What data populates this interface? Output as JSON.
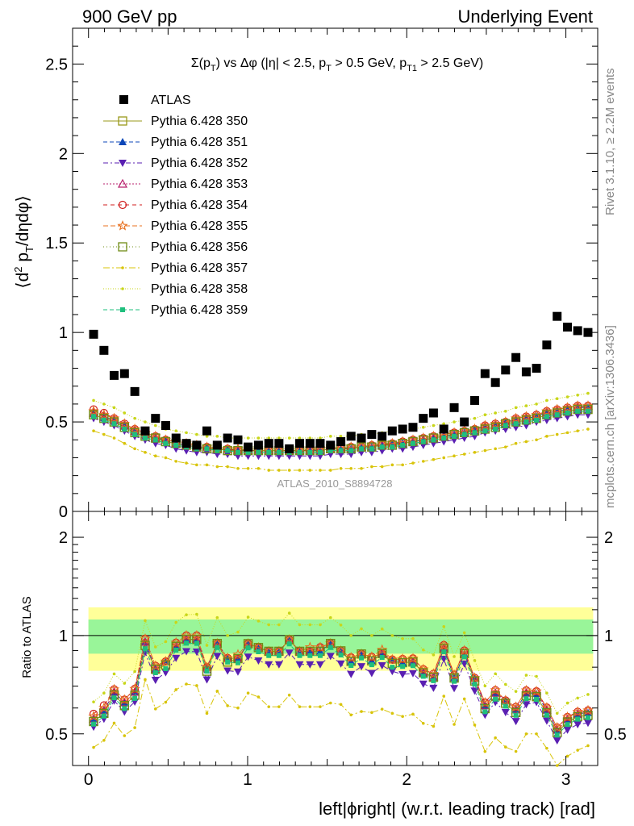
{
  "header": {
    "left": "900 GeV pp",
    "right": "Underlying Event"
  },
  "side_labels": {
    "rivet": "Rivet 3.1.10, ≥ 2.2M events",
    "mcplots": "mcplots.cern.ch [arXiv:1306.3436]"
  },
  "analysis_id": "ATLAS_2010_S8894728",
  "chart_data": [
    {
      "type": "scatter",
      "panel": "main",
      "title": "Σ(p_T) vs Δφ (|η| < 2.5, p_T > 0.5 GeV, p_T1 > 2.5 GeV)",
      "title_parts": [
        "Σ(p",
        "T",
        ") vs Δφ (|η| < 2.5, p",
        "T",
        " > 0.5 GeV, p",
        "T1",
        " > 2.5 GeV)"
      ],
      "ylabel": "⟨d² p_T/dηdφ⟩",
      "ylabel_parts": [
        "⟨d",
        "2",
        " p",
        "T",
        "/dηdφ⟩"
      ],
      "xlim": [
        -0.1,
        3.2
      ],
      "ylim": [
        0,
        2.7
      ],
      "y_ticks": [
        0,
        0.5,
        1,
        1.5,
        2,
        2.5
      ],
      "y_tick_labels": [
        "0",
        "0.5",
        "1",
        "1.5",
        "2",
        "2.5"
      ],
      "legend_position": "top-left",
      "data": {
        "name": "ATLAS",
        "x": [
          0.032,
          0.097,
          0.161,
          0.226,
          0.291,
          0.356,
          0.421,
          0.485,
          0.55,
          0.615,
          0.68,
          0.744,
          0.809,
          0.874,
          0.939,
          1.003,
          1.068,
          1.133,
          1.197,
          1.262,
          1.327,
          1.392,
          1.456,
          1.521,
          1.586,
          1.65,
          1.715,
          1.78,
          1.845,
          1.909,
          1.974,
          2.039,
          2.104,
          2.168,
          2.233,
          2.298,
          2.362,
          2.427,
          2.492,
          2.557,
          2.621,
          2.686,
          2.751,
          2.815,
          2.88,
          2.945,
          3.01,
          3.074,
          3.139
        ],
        "y": [
          0.99,
          0.9,
          0.76,
          0.77,
          0.67,
          0.45,
          0.52,
          0.48,
          0.41,
          0.38,
          0.37,
          0.45,
          0.37,
          0.41,
          0.4,
          0.36,
          0.37,
          0.38,
          0.38,
          0.35,
          0.38,
          0.38,
          0.38,
          0.37,
          0.39,
          0.42,
          0.41,
          0.43,
          0.42,
          0.45,
          0.46,
          0.47,
          0.52,
          0.55,
          0.46,
          0.58,
          0.5,
          0.62,
          0.77,
          0.72,
          0.79,
          0.86,
          0.78,
          0.8,
          0.93,
          1.09,
          1.03,
          1.01,
          1.0
        ]
      },
      "mc_series": [
        {
          "name": "Pythia 6.428 350",
          "y": [
            0.54,
            0.52,
            0.5,
            0.47,
            0.44,
            0.42,
            0.41,
            0.39,
            0.38,
            0.37,
            0.36,
            0.35,
            0.35,
            0.34,
            0.34,
            0.34,
            0.34,
            0.34,
            0.34,
            0.34,
            0.34,
            0.34,
            0.34,
            0.35,
            0.35,
            0.35,
            0.36,
            0.36,
            0.37,
            0.37,
            0.38,
            0.39,
            0.4,
            0.41,
            0.42,
            0.43,
            0.44,
            0.45,
            0.46,
            0.47,
            0.49,
            0.5,
            0.51,
            0.52,
            0.54,
            0.55,
            0.56,
            0.57,
            0.57
          ]
        },
        {
          "name": "Pythia 6.428 351",
          "y": [
            0.55,
            0.53,
            0.51,
            0.48,
            0.45,
            0.43,
            0.41,
            0.4,
            0.38,
            0.37,
            0.36,
            0.36,
            0.35,
            0.35,
            0.34,
            0.34,
            0.34,
            0.34,
            0.34,
            0.34,
            0.34,
            0.34,
            0.34,
            0.35,
            0.35,
            0.35,
            0.36,
            0.36,
            0.37,
            0.38,
            0.38,
            0.39,
            0.4,
            0.41,
            0.42,
            0.43,
            0.44,
            0.46,
            0.47,
            0.48,
            0.5,
            0.51,
            0.52,
            0.53,
            0.55,
            0.56,
            0.57,
            0.58,
            0.58
          ]
        },
        {
          "name": "Pythia 6.428 352",
          "y": [
            0.52,
            0.5,
            0.48,
            0.45,
            0.42,
            0.4,
            0.38,
            0.37,
            0.35,
            0.34,
            0.33,
            0.33,
            0.32,
            0.32,
            0.31,
            0.31,
            0.31,
            0.31,
            0.31,
            0.31,
            0.31,
            0.31,
            0.31,
            0.32,
            0.32,
            0.32,
            0.33,
            0.33,
            0.34,
            0.35,
            0.35,
            0.36,
            0.37,
            0.38,
            0.39,
            0.4,
            0.41,
            0.42,
            0.44,
            0.45,
            0.46,
            0.47,
            0.48,
            0.5,
            0.51,
            0.52,
            0.53,
            0.54,
            0.54
          ]
        },
        {
          "name": "Pythia 6.428 353",
          "y": [
            0.55,
            0.53,
            0.51,
            0.48,
            0.45,
            0.43,
            0.41,
            0.4,
            0.38,
            0.37,
            0.36,
            0.36,
            0.35,
            0.35,
            0.34,
            0.34,
            0.34,
            0.34,
            0.34,
            0.34,
            0.34,
            0.34,
            0.35,
            0.35,
            0.35,
            0.36,
            0.36,
            0.37,
            0.37,
            0.38,
            0.39,
            0.39,
            0.4,
            0.41,
            0.42,
            0.44,
            0.45,
            0.46,
            0.47,
            0.48,
            0.5,
            0.51,
            0.52,
            0.54,
            0.55,
            0.56,
            0.57,
            0.58,
            0.59
          ]
        },
        {
          "name": "Pythia 6.428 354",
          "y": [
            0.57,
            0.55,
            0.52,
            0.49,
            0.46,
            0.44,
            0.42,
            0.4,
            0.39,
            0.38,
            0.37,
            0.36,
            0.35,
            0.35,
            0.34,
            0.34,
            0.34,
            0.34,
            0.34,
            0.34,
            0.34,
            0.34,
            0.35,
            0.35,
            0.35,
            0.36,
            0.36,
            0.37,
            0.37,
            0.38,
            0.39,
            0.4,
            0.41,
            0.42,
            0.43,
            0.44,
            0.45,
            0.46,
            0.48,
            0.49,
            0.5,
            0.52,
            0.53,
            0.54,
            0.56,
            0.57,
            0.58,
            0.59,
            0.59
          ]
        },
        {
          "name": "Pythia 6.428 355",
          "y": [
            0.56,
            0.54,
            0.52,
            0.49,
            0.46,
            0.44,
            0.42,
            0.4,
            0.39,
            0.38,
            0.37,
            0.36,
            0.35,
            0.35,
            0.35,
            0.34,
            0.34,
            0.34,
            0.34,
            0.34,
            0.34,
            0.35,
            0.35,
            0.35,
            0.35,
            0.36,
            0.36,
            0.37,
            0.38,
            0.38,
            0.39,
            0.4,
            0.41,
            0.42,
            0.43,
            0.44,
            0.45,
            0.46,
            0.48,
            0.49,
            0.5,
            0.52,
            0.53,
            0.54,
            0.56,
            0.57,
            0.58,
            0.59,
            0.59
          ]
        },
        {
          "name": "Pythia 6.428 356",
          "y": [
            0.54,
            0.52,
            0.5,
            0.47,
            0.44,
            0.42,
            0.41,
            0.39,
            0.38,
            0.37,
            0.36,
            0.35,
            0.35,
            0.34,
            0.34,
            0.34,
            0.34,
            0.34,
            0.34,
            0.34,
            0.34,
            0.34,
            0.34,
            0.35,
            0.35,
            0.35,
            0.36,
            0.36,
            0.37,
            0.37,
            0.38,
            0.39,
            0.4,
            0.41,
            0.42,
            0.43,
            0.44,
            0.45,
            0.46,
            0.47,
            0.49,
            0.5,
            0.51,
            0.52,
            0.54,
            0.55,
            0.56,
            0.57,
            0.57
          ]
        },
        {
          "name": "Pythia 6.428 357",
          "y": [
            0.45,
            0.43,
            0.41,
            0.38,
            0.35,
            0.33,
            0.31,
            0.3,
            0.28,
            0.27,
            0.26,
            0.26,
            0.25,
            0.25,
            0.24,
            0.24,
            0.24,
            0.23,
            0.23,
            0.23,
            0.23,
            0.23,
            0.23,
            0.23,
            0.24,
            0.24,
            0.24,
            0.25,
            0.25,
            0.26,
            0.26,
            0.27,
            0.28,
            0.29,
            0.3,
            0.31,
            0.32,
            0.33,
            0.34,
            0.35,
            0.36,
            0.38,
            0.39,
            0.4,
            0.42,
            0.43,
            0.44,
            0.45,
            0.46
          ]
        },
        {
          "name": "Pythia 6.428 358",
          "y": [
            0.62,
            0.6,
            0.58,
            0.55,
            0.52,
            0.5,
            0.48,
            0.46,
            0.45,
            0.44,
            0.43,
            0.42,
            0.42,
            0.41,
            0.41,
            0.41,
            0.41,
            0.41,
            0.41,
            0.41,
            0.41,
            0.41,
            0.41,
            0.42,
            0.42,
            0.42,
            0.43,
            0.43,
            0.44,
            0.45,
            0.45,
            0.46,
            0.47,
            0.48,
            0.49,
            0.5,
            0.51,
            0.52,
            0.54,
            0.55,
            0.56,
            0.58,
            0.59,
            0.6,
            0.62,
            0.63,
            0.64,
            0.65,
            0.66
          ]
        },
        {
          "name": "Pythia 6.428 359",
          "y": [
            0.53,
            0.51,
            0.49,
            0.46,
            0.43,
            0.41,
            0.4,
            0.38,
            0.37,
            0.36,
            0.35,
            0.35,
            0.34,
            0.34,
            0.33,
            0.33,
            0.33,
            0.33,
            0.33,
            0.33,
            0.33,
            0.33,
            0.33,
            0.34,
            0.34,
            0.34,
            0.35,
            0.35,
            0.36,
            0.36,
            0.37,
            0.38,
            0.39,
            0.4,
            0.41,
            0.42,
            0.43,
            0.44,
            0.45,
            0.46,
            0.48,
            0.49,
            0.5,
            0.51,
            0.53,
            0.54,
            0.55,
            0.56,
            0.56
          ]
        }
      ]
    },
    {
      "type": "line",
      "panel": "ratio",
      "ylabel": "Ratio to ATLAS",
      "xlabel": "left|ϕright| (w.r.t. leading track) [rad]",
      "xlim": [
        -0.1,
        3.2
      ],
      "ylim": [
        0.4,
        2.4
      ],
      "y_log_scale": true,
      "x_ticks": [
        0,
        1,
        2,
        3
      ],
      "x_tick_labels": [
        "0",
        "1",
        "2",
        "3"
      ],
      "y_ticks": [
        0.5,
        1,
        2
      ],
      "y_tick_labels": [
        "0.5",
        "1",
        "2"
      ],
      "reference_line": 1,
      "band_inner_halfwidth": 0.12,
      "band_outer_halfwidth": 0.22
    }
  ],
  "colors": {
    "data": "#000000",
    "band_inner": "#99f599",
    "band_outer": "#ffff99",
    "mc": [
      "#99991a",
      "#0d47b8",
      "#5a1fb2",
      "#b8206d",
      "#d01d1d",
      "#e8701f",
      "#6f8c15",
      "#d8c40a",
      "#c8d61a",
      "#1fbf7d"
    ]
  },
  "mc_markers": [
    "square-open",
    "triangle-up",
    "triangle-down",
    "triangle-open",
    "circle-open",
    "star-open",
    "square-open",
    "dot",
    "dot",
    "square-filled"
  ],
  "mc_dashes": [
    "",
    "5,3",
    "6,3,2,3",
    "2,2",
    "5,4",
    "6,3",
    "1,3",
    "8,3,2,3",
    "1,2",
    "5,3"
  ]
}
